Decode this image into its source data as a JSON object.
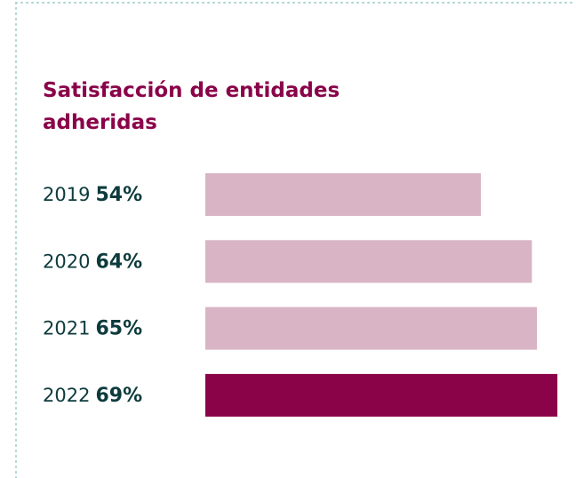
{
  "chart_data": {
    "type": "bar",
    "orientation": "horizontal",
    "title": "Satisfacción de entidades adheridas",
    "categories": [
      "2019",
      "2020",
      "2021",
      "2022"
    ],
    "values": [
      54,
      64,
      65,
      69
    ],
    "value_labels": [
      "54%",
      "64%",
      "65%",
      "69%"
    ],
    "colors": [
      "#d9b4c5",
      "#d9b4c5",
      "#d9b4c5",
      "#8a0349"
    ]
  }
}
